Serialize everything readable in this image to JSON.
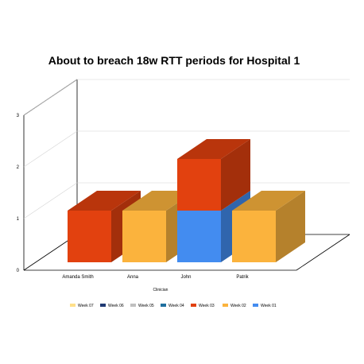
{
  "chart_data": {
    "type": "bar",
    "title": "About to breach 18w RTT periods for Hospital 1",
    "xlabel": "Clinician",
    "ylabel": "",
    "ylim": [
      0,
      3
    ],
    "y_ticks": [
      "0",
      "1",
      "2",
      "3"
    ],
    "categories": [
      "Amanda Smith",
      "Anna",
      "John",
      "Patrik"
    ],
    "stacked": true,
    "three_d": true,
    "grid": true,
    "legend_position": "bottom",
    "series": [
      {
        "name": "Week 07",
        "color": "#ffe08a",
        "values": [
          0,
          0,
          0,
          0
        ]
      },
      {
        "name": "Week 06",
        "color": "#1f3a73",
        "values": [
          0,
          0,
          0,
          0
        ]
      },
      {
        "name": "Week 05",
        "color": "#c0c0c0",
        "values": [
          0,
          0,
          0,
          0
        ]
      },
      {
        "name": "Week 04",
        "color": "#1f6f9f",
        "values": [
          0,
          0,
          0,
          0
        ]
      },
      {
        "name": "Week 03",
        "color": "#e2410f",
        "values": [
          1,
          0,
          1,
          0
        ]
      },
      {
        "name": "Week 02",
        "color": "#fbb33d",
        "values": [
          0,
          1,
          0,
          1
        ]
      },
      {
        "name": "Week 01",
        "color": "#438cf0",
        "values": [
          0,
          0,
          1,
          0
        ]
      }
    ]
  }
}
